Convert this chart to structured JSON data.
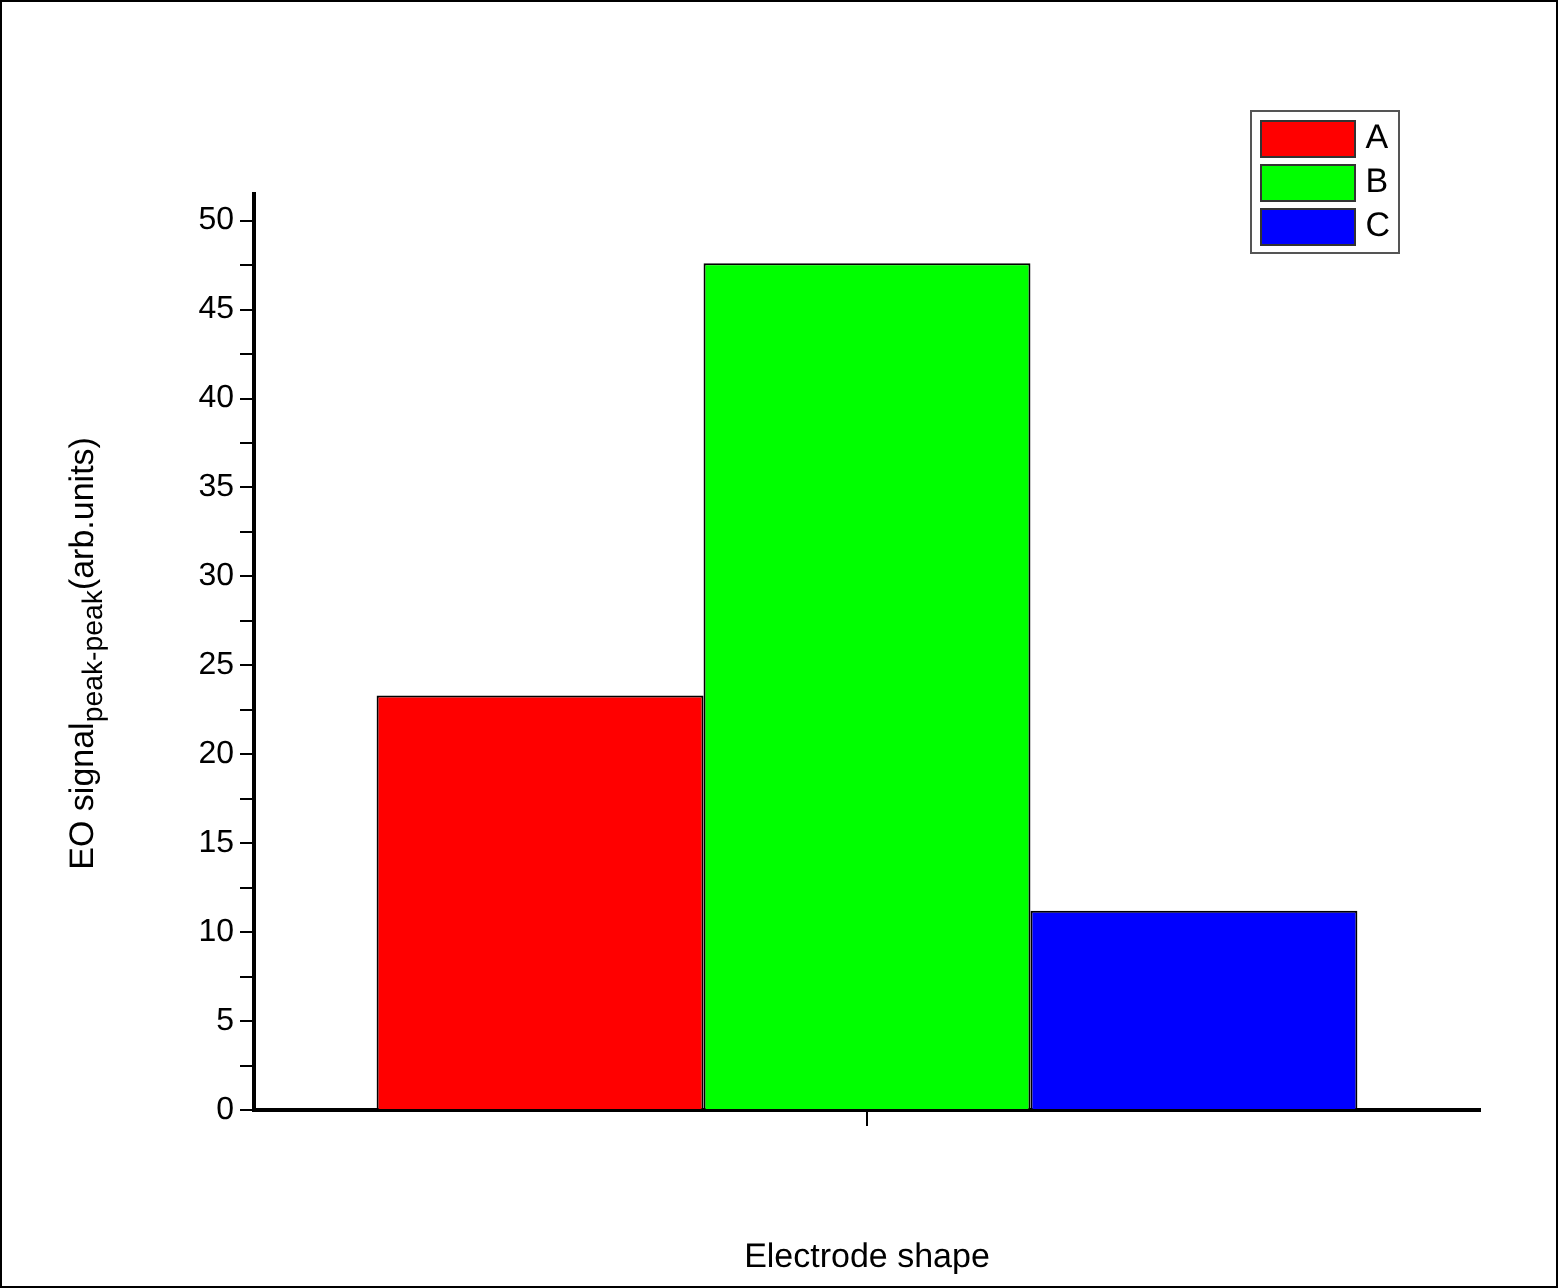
{
  "chart_data": {
    "type": "bar",
    "xlabel": "Electrode shape",
    "ylabel": "EO signal$_{peak-peak}$(arb.units)",
    "categories": [
      null
    ],
    "series": [
      {
        "name": "A",
        "color": "#ff0000",
        "values": [
          23.3
        ]
      },
      {
        "name": "B",
        "color": "#00ff00",
        "values": [
          47.6
        ]
      },
      {
        "name": "C",
        "color": "#0000ff",
        "values": [
          11.2
        ]
      }
    ],
    "ylim": [
      0,
      51.5
    ],
    "yticks": [
      0,
      {
        "value": 2.5,
        "label": null
      },
      5,
      {
        "value": 7.5,
        "label": null
      },
      10,
      {
        "value": 12.5,
        "label": null
      },
      15,
      {
        "value": 17.5,
        "label": null
      },
      20,
      {
        "value": 22.5,
        "label": null
      },
      25,
      {
        "value": 27.5,
        "label": null
      },
      30,
      {
        "value": 32.5,
        "label": null
      },
      35,
      {
        "value": 37.5,
        "label": null
      },
      40,
      {
        "value": 42.5,
        "label": null
      },
      45,
      {
        "value": 47.5,
        "label": null
      },
      50
    ],
    "grid": false,
    "legend": "top right"
  }
}
